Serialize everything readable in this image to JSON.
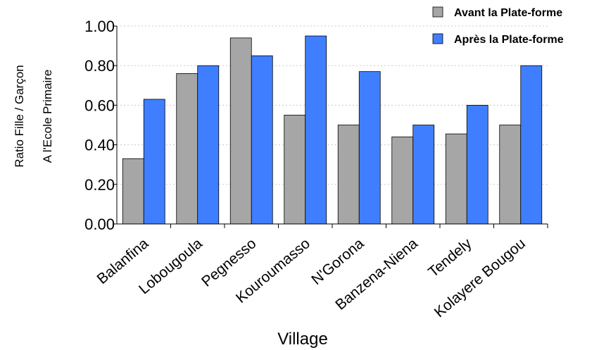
{
  "chart_data": {
    "type": "bar",
    "categories": [
      "Balanfina",
      "Lobougoula",
      "Pegnesso",
      "Kouroumasso",
      "N'Gorona",
      "Banzena-Niena",
      "Tendely",
      "Kolayere Bougou"
    ],
    "series": [
      {
        "name": "Avant la Plate-forme",
        "color": "#a6a6a6",
        "values": [
          0.33,
          0.76,
          0.94,
          0.55,
          0.5,
          0.44,
          0.455,
          0.5
        ]
      },
      {
        "name": "Après la Plate-forme",
        "color": "#3f7fff",
        "values": [
          0.63,
          0.8,
          0.85,
          0.95,
          0.77,
          0.5,
          0.6,
          0.8
        ]
      }
    ],
    "ylim": [
      0,
      1
    ],
    "yticks": [
      "0.00",
      "0.20",
      "0.40",
      "0.60",
      "0.80",
      "1.00"
    ],
    "xlabel": "Village",
    "ylabel_lines": [
      "Ratio Fille / Garçon",
      "A l'Ecole Primaire"
    ],
    "grid": true,
    "legend_position": "top-right"
  }
}
